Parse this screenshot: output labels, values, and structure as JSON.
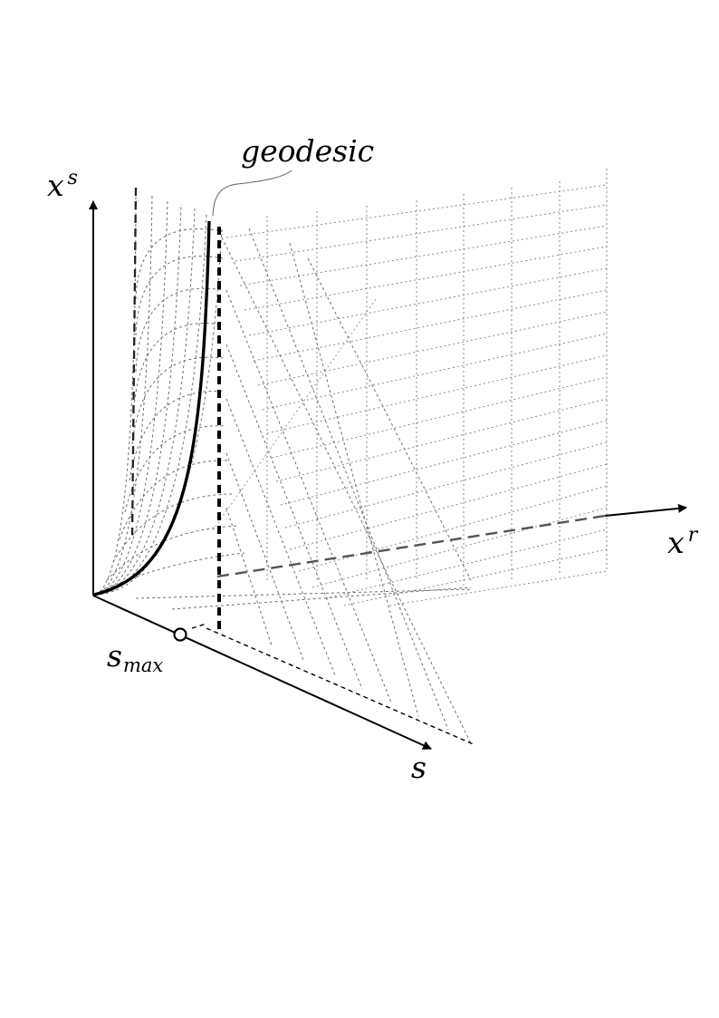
{
  "labels": {
    "vertical_axis": {
      "base": "x",
      "superscript": "s"
    },
    "right_axis": {
      "base": "x",
      "superscript": "r"
    },
    "front_axis": {
      "base": "s"
    },
    "smax": {
      "base": "s",
      "subscript": "max"
    },
    "geodesic": "geodesic"
  },
  "colors": {
    "ink": "#000000",
    "grid": "#777777",
    "grid_light": "#9a9a9a",
    "axis_dash": "#555555"
  },
  "icons": {
    "arrowheads": "filled-triangle-arrow-icon",
    "smax_marker": "open-circle-marker-icon"
  }
}
